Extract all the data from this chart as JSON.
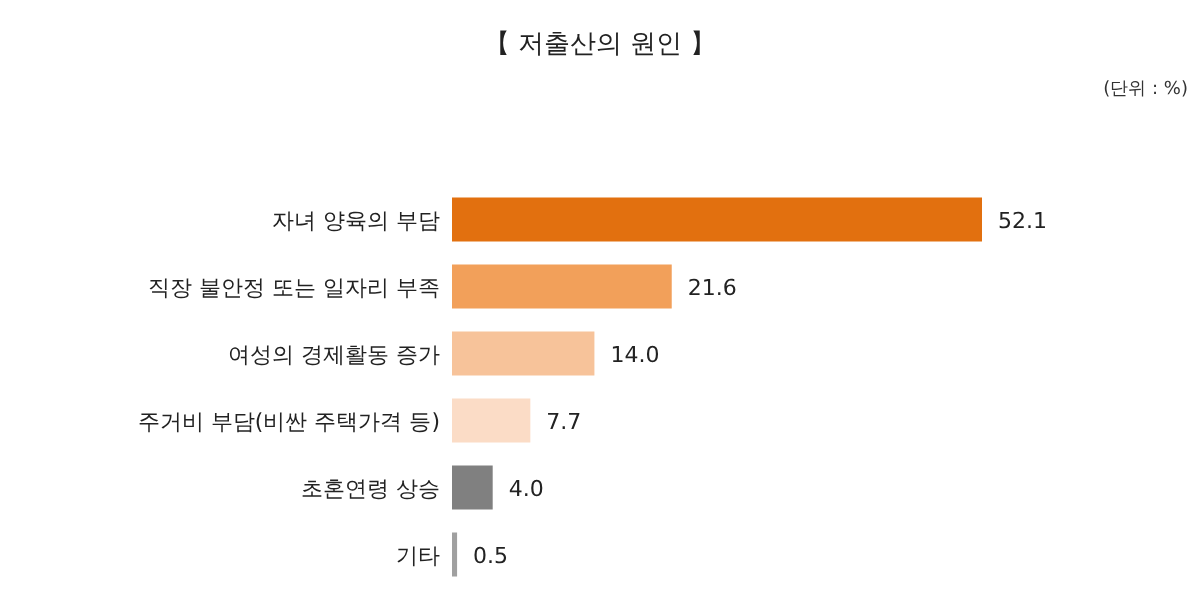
{
  "chart_data": {
    "type": "bar",
    "orientation": "horizontal",
    "title": "【 저출산의 원인 】",
    "annotations": [
      "(단위 : %)"
    ],
    "categories": [
      "자녀 양육의 부담",
      "직장 불안정 또는 일자리 부족",
      "여성의 경제활동 증가",
      "주거비 부담(비싼 주택가격 등)",
      "초혼연령 상승",
      "기타"
    ],
    "values": [
      52.1,
      21.6,
      14.0,
      7.7,
      4.0,
      0.5
    ],
    "colors": [
      "#e2700f",
      "#f2a05a",
      "#f7c39a",
      "#fbdcc6",
      "#808080",
      "#a0a0a0"
    ],
    "value_labels": [
      "52.1",
      "21.6",
      "14.0",
      "7.7",
      "4.0",
      "0.5"
    ]
  }
}
